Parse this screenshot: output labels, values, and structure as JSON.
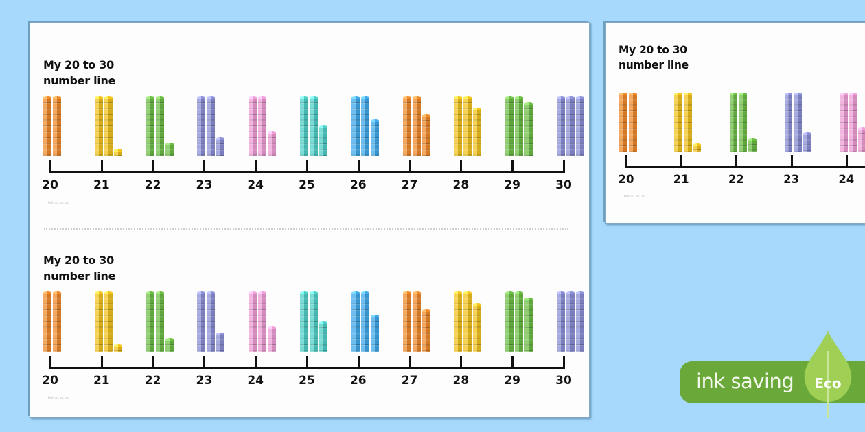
{
  "background_color": "#a6d9fb",
  "worksheet": {
    "title_line1": "My 20 to 30",
    "title_line2": "number line",
    "watermark": "twinkl.co.uk",
    "numbers": [
      "20",
      "21",
      "22",
      "23",
      "24",
      "25",
      "26",
      "27",
      "28",
      "29",
      "30"
    ],
    "groups": [
      {
        "value": 20,
        "tens": 2,
        "ones": 0,
        "color": "#f08a2a"
      },
      {
        "value": 21,
        "tens": 2,
        "ones": 1,
        "color": "#f2c31c"
      },
      {
        "value": 22,
        "tens": 2,
        "ones": 2,
        "color": "#6cbd45"
      },
      {
        "value": 23,
        "tens": 2,
        "ones": 3,
        "color": "#8b8fd6"
      },
      {
        "value": 24,
        "tens": 2,
        "ones": 4,
        "color": "#ef9ed6"
      },
      {
        "value": 25,
        "tens": 2,
        "ones": 5,
        "color": "#4fd0c8"
      },
      {
        "value": 26,
        "tens": 2,
        "ones": 6,
        "color": "#3fa9ea"
      },
      {
        "value": 27,
        "tens": 2,
        "ones": 7,
        "color": "#f08a2a"
      },
      {
        "value": 28,
        "tens": 2,
        "ones": 8,
        "color": "#f2c31c"
      },
      {
        "value": 29,
        "tens": 2,
        "ones": 9,
        "color": "#6cbd45"
      },
      {
        "value": 30,
        "tens": 3,
        "ones": 0,
        "color": "#8b8fd6"
      }
    ]
  },
  "pages": {
    "main": {
      "sections": 2
    },
    "preview": {
      "sections": 1,
      "visible_numbers": [
        "20",
        "21",
        "22",
        "23",
        "24"
      ]
    }
  },
  "eco_badge": {
    "label": "ink saving",
    "leaf_label": "Eco",
    "bar_color": "#6aa83a",
    "leaf_color": "#9fcf55"
  }
}
